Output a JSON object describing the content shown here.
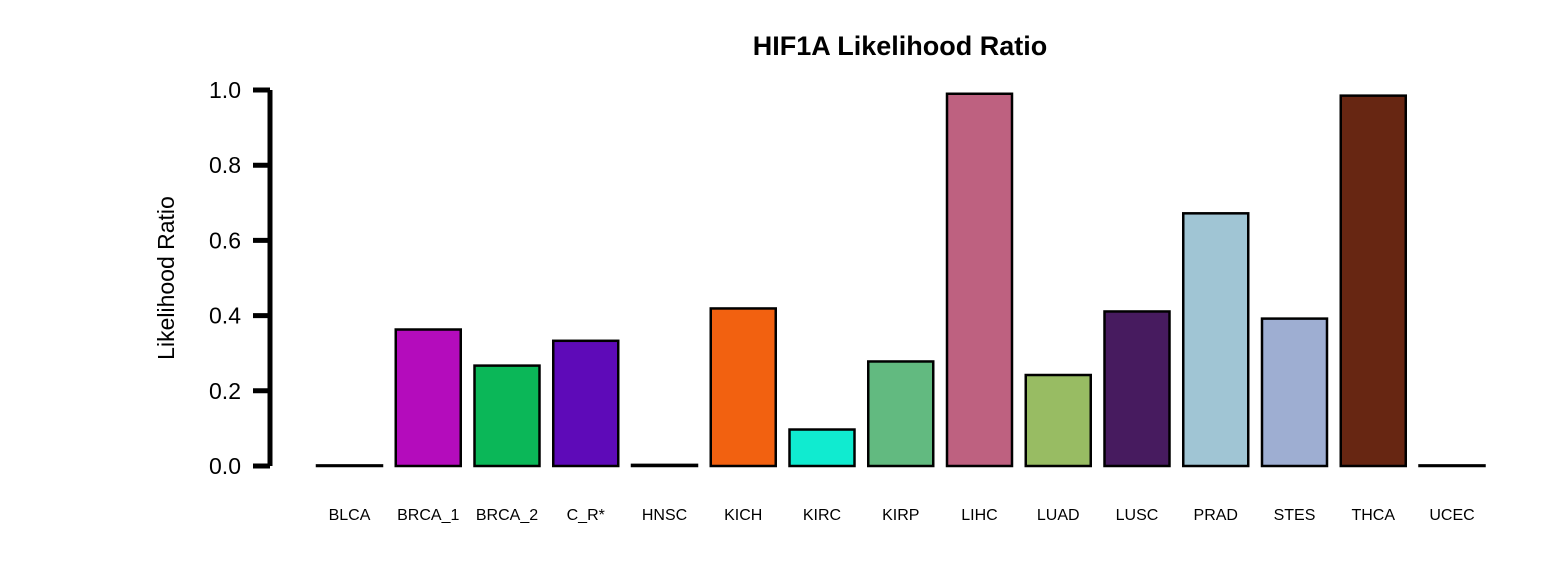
{
  "chart_data": {
    "type": "bar",
    "title": "HIF1A Likelihood Ratio",
    "xlabel": "",
    "ylabel": "Likelihood Ratio",
    "ylim": [
      0,
      1.0
    ],
    "yticks": [
      "0.0",
      "0.2",
      "0.4",
      "0.6",
      "0.8",
      "1.0"
    ],
    "grid": false,
    "legend": "none",
    "categories": [
      "BLCA",
      "BRCA_1",
      "BRCA_2",
      "C_R*",
      "HNSC",
      "KICH",
      "KIRC",
      "KIRP",
      "LIHC",
      "LUAD",
      "LUSC",
      "PRAD",
      "STES",
      "THCA",
      "UCEC"
    ],
    "values": [
      0.0,
      0.363,
      0.267,
      0.333,
      0.003,
      0.419,
      0.097,
      0.278,
      0.99,
      0.242,
      0.411,
      0.672,
      0.392,
      0.985,
      0.0
    ],
    "colors": [
      "#ffffff",
      "#b40cbc",
      "#0bb758",
      "#5e0ab8",
      "#ffffff",
      "#f26110",
      "#10ebd0",
      "#62ba80",
      "#be6180",
      "#98bc63",
      "#471b5f",
      "#a0c5d4",
      "#9eaed2",
      "#672612",
      "#ffffff"
    ]
  }
}
